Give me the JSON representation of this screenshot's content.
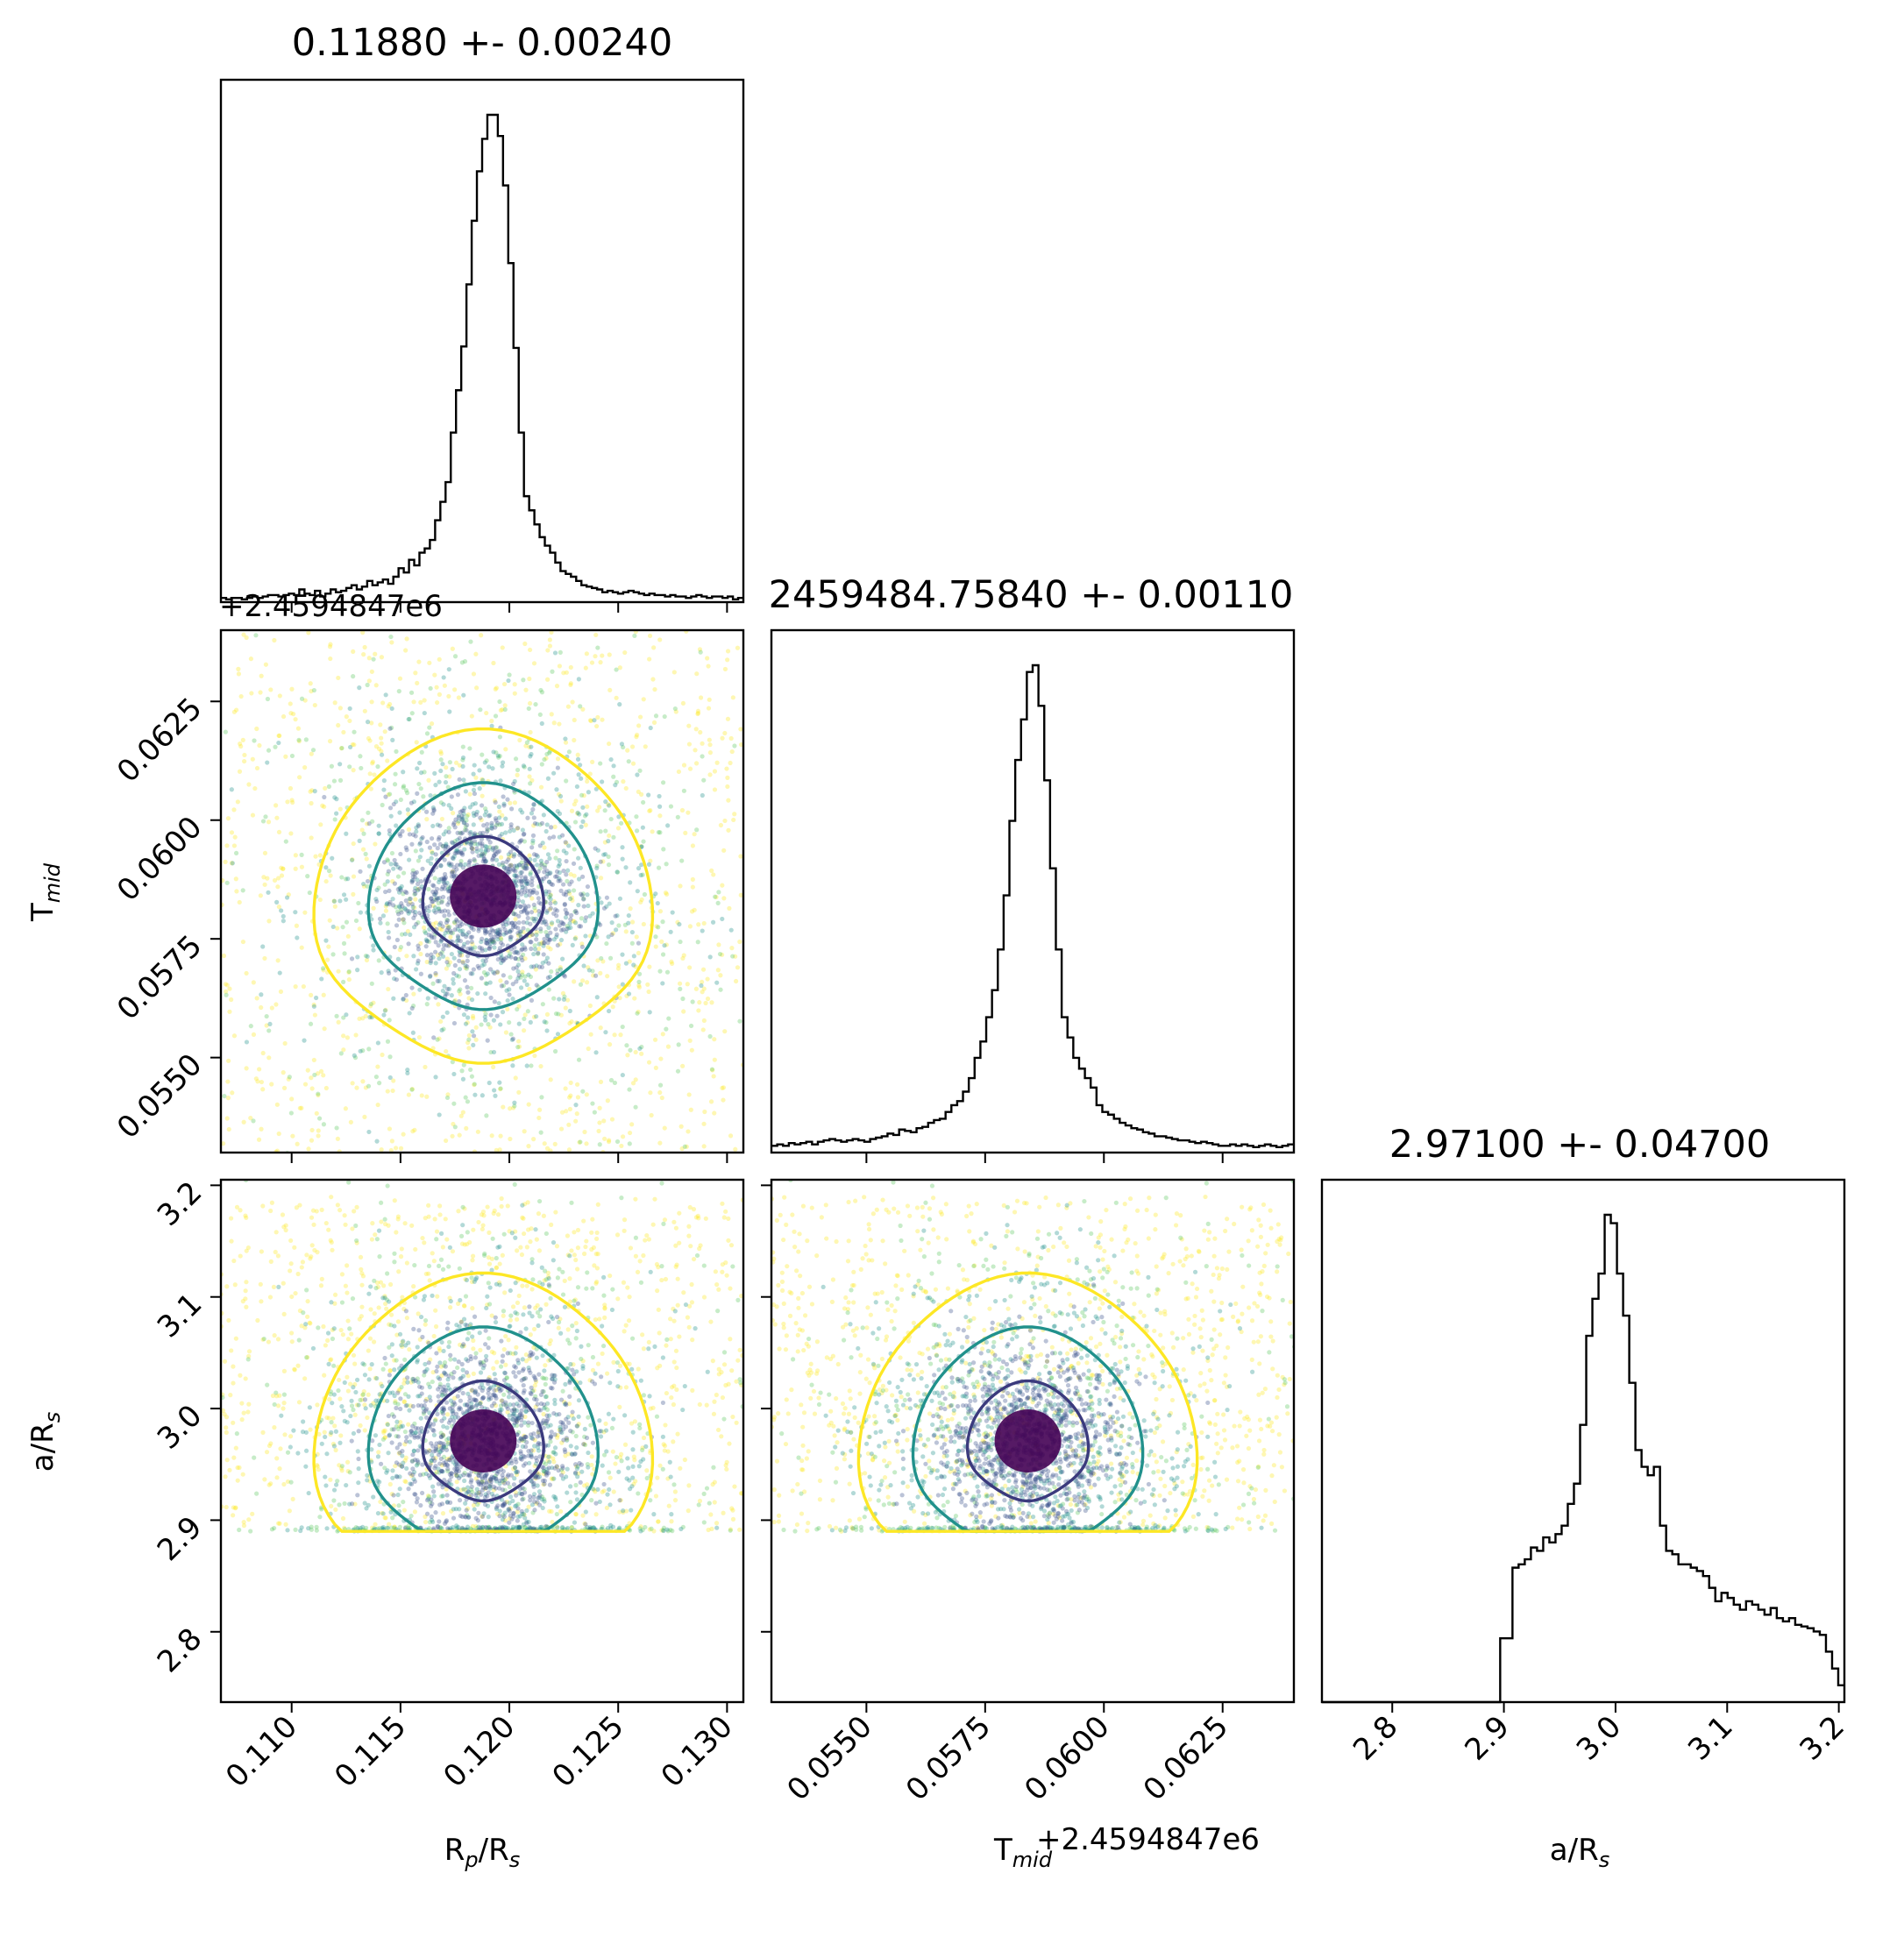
{
  "chart_data": {
    "type": "corner",
    "parameters": [
      {
        "key": "rp",
        "label_main": "R",
        "label_sub": "p",
        "label_mid": "/R",
        "label_sub2": "s",
        "median": 0.1188,
        "sigma": 0.0024,
        "range": [
          0.10675,
          0.13075
        ],
        "title": "0.11880 +- 0.00240",
        "ticks": [
          0.11,
          0.115,
          0.12,
          0.125,
          0.13
        ],
        "tick_labels": [
          "0.110",
          "0.115",
          "0.120",
          "0.125",
          "0.130"
        ]
      },
      {
        "key": "tmid",
        "label_main": "T",
        "label_sub": "mid",
        "label_mid": "",
        "label_sub2": "",
        "median": 0.0584,
        "sigma": 0.0011,
        "range": [
          0.053,
          0.064
        ],
        "title": "2459484.75840 +- 0.00110",
        "offset_label": "+2.4594847e6",
        "ticks": [
          0.055,
          0.0575,
          0.06,
          0.0625
        ],
        "tick_labels": [
          "0.0550",
          "0.0575",
          "0.0600",
          "0.0625"
        ]
      },
      {
        "key": "ars",
        "label_main": "a",
        "label_sub": "",
        "label_mid": "/R",
        "label_sub2": "s",
        "median": 2.971,
        "sigma": 0.047,
        "range": [
          2.737,
          3.205
        ],
        "title": "2.97100 +- 0.04700",
        "ticks": [
          2.8,
          2.9,
          3.0,
          3.1,
          3.2
        ],
        "tick_labels": [
          "2.8",
          "2.9",
          "3.0",
          "3.1",
          "3.2"
        ]
      }
    ],
    "histograms": {
      "rp": {
        "bin_edges_range": [
          0.10675,
          0.13075
        ],
        "bins": 100,
        "counts": [
          3,
          2,
          3,
          3,
          2,
          3,
          4,
          3,
          4,
          5,
          5,
          4,
          5,
          6,
          5,
          9,
          6,
          5,
          8,
          4,
          6,
          9,
          7,
          8,
          10,
          12,
          9,
          11,
          15,
          12,
          14,
          16,
          13,
          18,
          24,
          21,
          30,
          26,
          35,
          38,
          44,
          58,
          71,
          85,
          120,
          150,
          181,
          225,
          270,
          305,
          328,
          345,
          345,
          330,
          295,
          240,
          180,
          120,
          75,
          65,
          55,
          46,
          40,
          35,
          28,
          22,
          20,
          18,
          15,
          12,
          11,
          10,
          9,
          7,
          8,
          7,
          6,
          7,
          8,
          7,
          6,
          5,
          6,
          5,
          5,
          4,
          5,
          4,
          4,
          3,
          4,
          5,
          4,
          3,
          4,
          4,
          3,
          4,
          2,
          3
        ]
      },
      "tmid": {
        "bin_edges_range": [
          0.053,
          0.064
        ],
        "bins": 90,
        "counts": [
          5,
          6,
          5,
          7,
          6,
          7,
          8,
          6,
          8,
          9,
          10,
          9,
          8,
          9,
          10,
          9,
          8,
          10,
          11,
          12,
          14,
          13,
          17,
          16,
          15,
          18,
          19,
          22,
          24,
          25,
          30,
          35,
          38,
          45,
          55,
          70,
          82,
          100,
          120,
          150,
          190,
          245,
          290,
          320,
          355,
          360,
          330,
          275,
          210,
          150,
          100,
          85,
          70,
          62,
          55,
          48,
          35,
          30,
          28,
          25,
          22,
          20,
          18,
          17,
          15,
          14,
          12,
          12,
          11,
          10,
          9,
          9,
          8,
          7,
          8,
          7,
          6,
          5,
          5,
          6,
          5,
          6,
          5,
          4,
          5,
          6,
          5,
          4,
          5,
          6
        ]
      },
      "ars": {
        "bin_edges_range": [
          2.737,
          3.205
        ],
        "bins": 85,
        "counts": [
          0,
          0,
          0,
          0,
          0,
          0,
          0,
          0,
          0,
          0,
          0,
          0,
          0,
          0,
          0,
          0,
          0,
          0,
          0,
          0,
          0,
          0,
          0,
          0,
          0,
          0,
          0,
          0,
          0,
          38,
          38,
          80,
          82,
          85,
          92,
          90,
          98,
          95,
          100,
          105,
          118,
          130,
          165,
          218,
          240,
          255,
          290,
          285,
          255,
          230,
          190,
          150,
          140,
          135,
          140,
          105,
          90,
          88,
          82,
          82,
          80,
          78,
          75,
          68,
          60,
          65,
          62,
          58,
          55,
          60,
          58,
          55,
          52,
          56,
          50,
          48,
          50,
          46,
          45,
          44,
          42,
          40,
          30,
          20,
          10
        ]
      }
    },
    "contour_levels": [
      "inner",
      "middle",
      "outer"
    ],
    "colors": {
      "line": "#000000",
      "inner_contour": "#3b3a7d",
      "middle_contour": "#21918c",
      "outer_contour": "#fde725",
      "core": "#440154",
      "points": [
        "#440154",
        "#3b528b",
        "#21918c",
        "#5ec962",
        "#fde725"
      ]
    }
  }
}
